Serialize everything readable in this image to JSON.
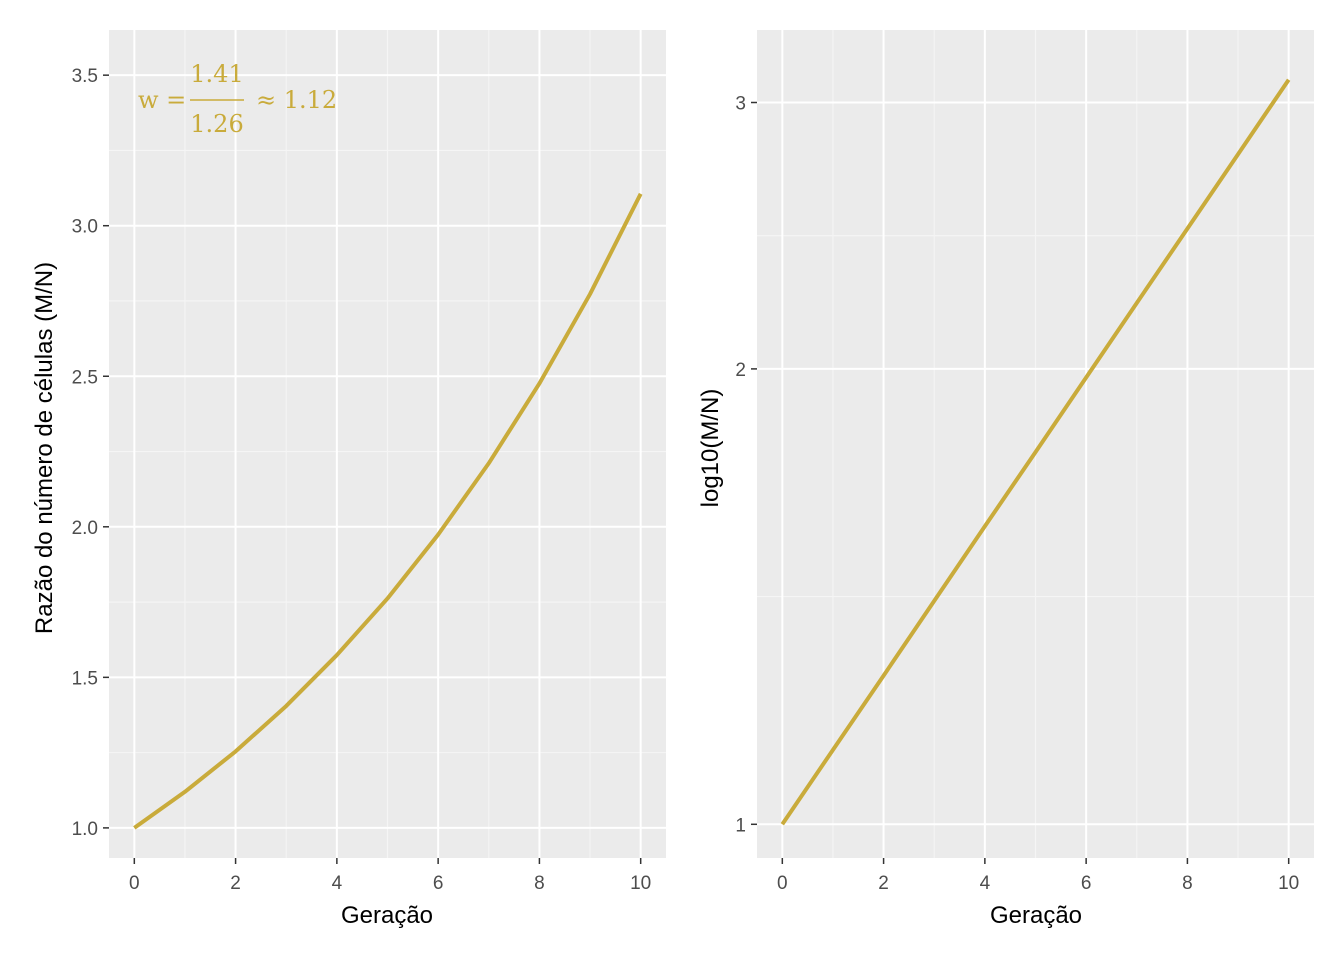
{
  "colors": {
    "panel_background": "#ebebeb",
    "grid_major": "#ffffff",
    "grid_minor": "#f5f5f5",
    "tick_text": "#4d4d4d",
    "tick_mark": "#333333",
    "series": "#c9ab3b"
  },
  "chart_data": [
    {
      "type": "line",
      "xlabel": "Geração",
      "ylabel": "Razão do número de células (M/N)",
      "xlim": [
        -0.5,
        10.5
      ],
      "ylim": [
        0.9,
        3.65
      ],
      "x_ticks": [
        0,
        2,
        4,
        6,
        8,
        10
      ],
      "x_tick_labels": [
        "0",
        "2",
        "4",
        "6",
        "8",
        "10"
      ],
      "y_ticks": [
        1.0,
        1.5,
        2.0,
        2.5,
        3.0,
        3.5
      ],
      "y_tick_labels": [
        "1.0",
        "1.5",
        "2.0",
        "2.5",
        "3.0",
        "3.5"
      ],
      "y_scale": "linear",
      "grid": true,
      "series": [
        {
          "x": [
            0,
            1,
            2,
            3,
            4,
            5,
            6,
            7,
            8,
            9,
            10
          ],
          "values": [
            1.0,
            1.12,
            1.254,
            1.405,
            1.574,
            1.762,
            1.974,
            2.211,
            2.476,
            2.773,
            3.106
          ]
        }
      ],
      "annotation": {
        "lhs": "w =",
        "numerator": "1.41",
        "denominator": "1.26",
        "rhs": "≈ 1.12"
      }
    },
    {
      "type": "line",
      "xlabel": "Geração",
      "ylabel": "log10(M/N)",
      "xlim": [
        -0.5,
        10.5
      ],
      "ylim": [
        0.95,
        3.35
      ],
      "x_ticks": [
        0,
        2,
        4,
        6,
        8,
        10
      ],
      "x_tick_labels": [
        "0",
        "2",
        "4",
        "6",
        "8",
        "10"
      ],
      "y_ticks": [
        1,
        2,
        3
      ],
      "y_tick_labels": [
        "1",
        "2",
        "3"
      ],
      "y_scale": "log10",
      "grid": true,
      "series": [
        {
          "x": [
            0,
            1,
            2,
            3,
            4,
            5,
            6,
            7,
            8,
            9,
            10
          ],
          "values": [
            1.0,
            1.12,
            1.254,
            1.405,
            1.574,
            1.762,
            1.974,
            2.211,
            2.476,
            2.773,
            3.106
          ]
        }
      ]
    }
  ]
}
